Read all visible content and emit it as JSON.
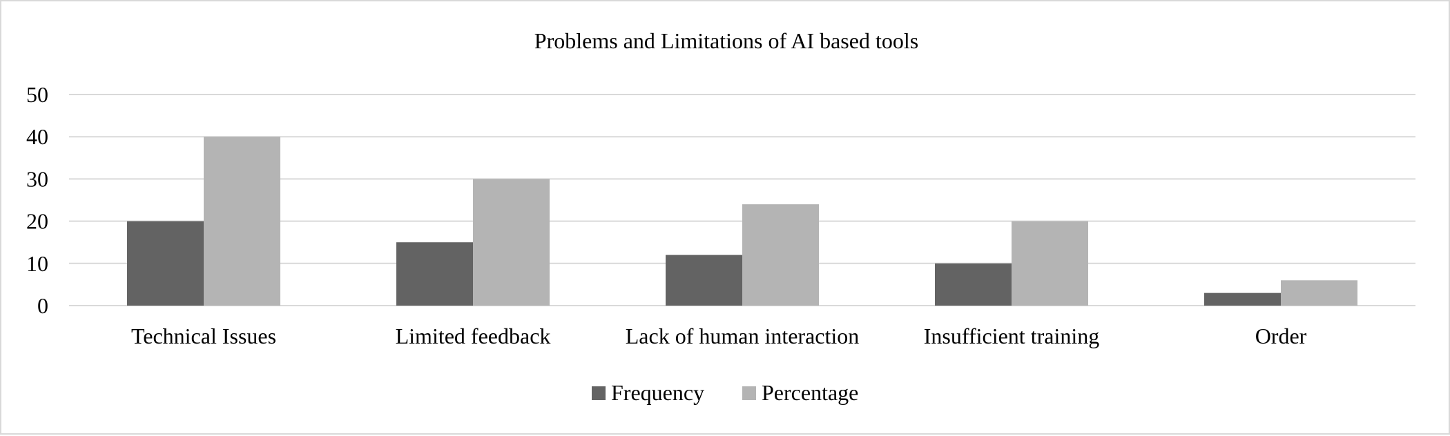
{
  "chart_data": {
    "type": "bar",
    "title": "Problems and Limitations of AI based tools",
    "categories": [
      "Technical Issues",
      "Limited feedback",
      "Lack of human interaction",
      "Insufficient training",
      "Order"
    ],
    "series": [
      {
        "name": "Frequency",
        "values": [
          20,
          15,
          12,
          10,
          3
        ],
        "color": "#636363"
      },
      {
        "name": "Percentage",
        "values": [
          40,
          30,
          24,
          20,
          6
        ],
        "color": "#b4b4b4"
      }
    ],
    "ylim": [
      0,
      50
    ],
    "yticks": [
      0,
      10,
      20,
      30,
      40,
      50
    ],
    "grid": true,
    "legend_position": "bottom"
  }
}
